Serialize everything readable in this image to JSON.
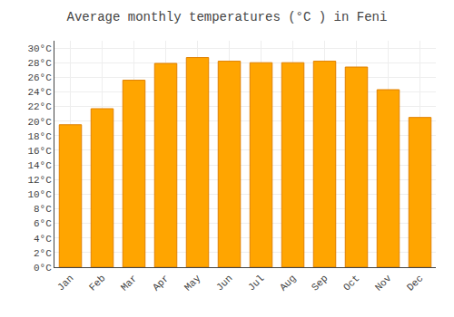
{
  "chart_data": {
    "type": "bar",
    "title": "Average monthly temperatures (°C ) in Feni",
    "categories": [
      "Jan",
      "Feb",
      "Mar",
      "Apr",
      "May",
      "Jun",
      "Jul",
      "Aug",
      "Sep",
      "Oct",
      "Nov",
      "Dec"
    ],
    "values": [
      19.5,
      21.7,
      25.6,
      27.9,
      28.7,
      28.2,
      28.0,
      28.0,
      28.2,
      27.4,
      24.3,
      20.5
    ],
    "color": "#FFA500",
    "ylim": [
      0,
      31
    ],
    "yticks": [
      {
        "value": 0,
        "label": "0°C"
      },
      {
        "value": 2,
        "label": "2°C"
      },
      {
        "value": 4,
        "label": "4°C"
      },
      {
        "value": 6,
        "label": "6°C"
      },
      {
        "value": 8,
        "label": "8°C"
      },
      {
        "value": 10,
        "label": "10°C"
      },
      {
        "value": 12,
        "label": "12°C"
      },
      {
        "value": 14,
        "label": "14°C"
      },
      {
        "value": 16,
        "label": "16°C"
      },
      {
        "value": 18,
        "label": "18°C"
      },
      {
        "value": 20,
        "label": "20°C"
      },
      {
        "value": 22,
        "label": "22°C"
      },
      {
        "value": 24,
        "label": "24°C"
      },
      {
        "value": 26,
        "label": "26°C"
      },
      {
        "value": 28,
        "label": "28°C"
      },
      {
        "value": 30,
        "label": "30°C"
      }
    ],
    "grid": true
  }
}
